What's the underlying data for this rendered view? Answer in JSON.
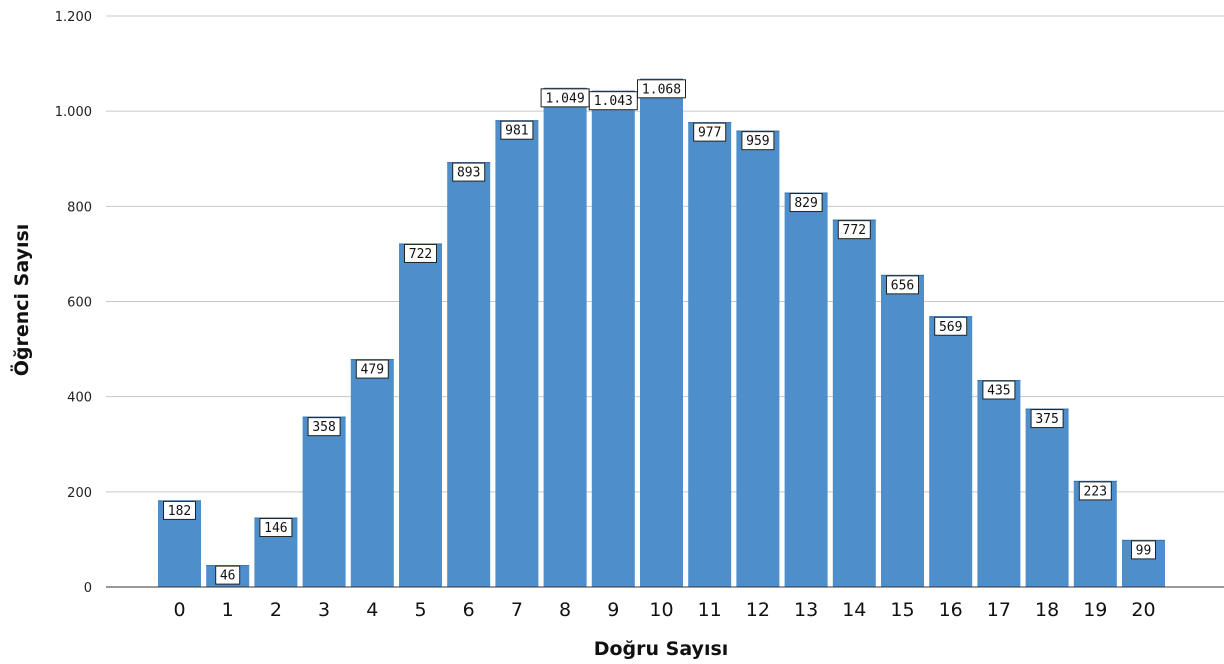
{
  "chart_data": {
    "type": "bar",
    "title": "",
    "xlabel": "Doğru Sayısı",
    "ylabel": "Öğrenci Sayısı",
    "categories": [
      "0",
      "1",
      "2",
      "3",
      "4",
      "5",
      "6",
      "7",
      "8",
      "9",
      "10",
      "11",
      "12",
      "13",
      "14",
      "15",
      "16",
      "17",
      "18",
      "19",
      "20"
    ],
    "values": [
      182,
      46,
      146,
      358,
      479,
      722,
      893,
      981,
      1049,
      1043,
      1068,
      977,
      959,
      829,
      772,
      656,
      569,
      435,
      375,
      223,
      99
    ],
    "value_labels": [
      "182",
      "46",
      "146",
      "358",
      "479",
      "722",
      "893",
      "981",
      "1.049",
      "1.043",
      "1.068",
      "977",
      "959",
      "829",
      "772",
      "656",
      "569",
      "435",
      "375",
      "223",
      "99"
    ],
    "ylim": [
      0,
      1200
    ],
    "yticks": [
      0,
      200,
      400,
      600,
      800,
      1000,
      1200
    ],
    "ytick_labels": [
      "0",
      "200",
      "400",
      "600",
      "800",
      "1.000",
      "1.200"
    ],
    "grid": true,
    "legend": "none",
    "bar_color": "#4e8fcb"
  }
}
